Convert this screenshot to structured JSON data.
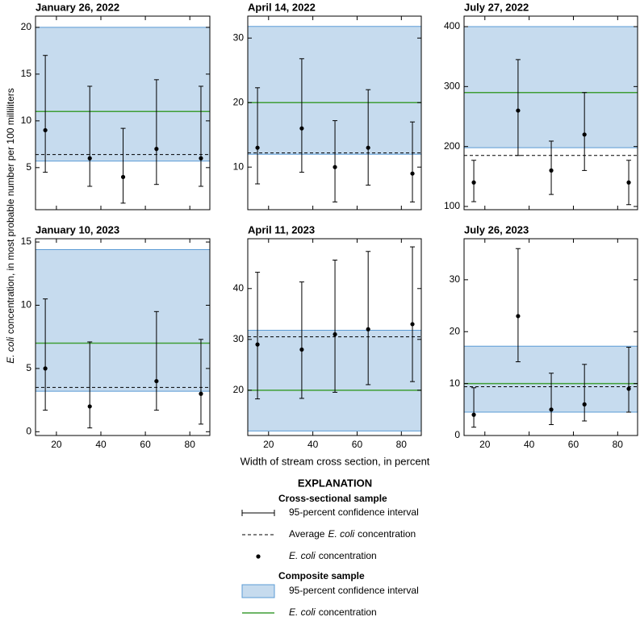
{
  "chart_data": [
    {
      "type": "errorbar",
      "title": "January 26, 2022",
      "x": [
        15,
        35,
        50,
        65,
        85
      ],
      "values": [
        9,
        6,
        4,
        7,
        6
      ],
      "ci_low": [
        4.5,
        3,
        1.2,
        3.2,
        3
      ],
      "ci_high": [
        17,
        13.7,
        9.2,
        14.4,
        13.7
      ],
      "mean": 6.4,
      "composite": 11,
      "composite_ci": [
        5.7,
        20
      ],
      "xlim": [
        10.6,
        89
      ],
      "xticks": [
        20,
        40,
        60,
        80
      ],
      "ylim": [
        0.5,
        21.2
      ],
      "yticks": [
        5,
        10,
        15,
        20
      ]
    },
    {
      "type": "errorbar",
      "title": "April 14, 2022",
      "x": [
        15,
        35,
        50,
        65,
        85
      ],
      "values": [
        13,
        16,
        10,
        13,
        9
      ],
      "ci_low": [
        7.4,
        9.2,
        4.6,
        7.2,
        4.6
      ],
      "ci_high": [
        22.3,
        26.8,
        17.2,
        22,
        17
      ],
      "mean": 12.2,
      "composite": 20,
      "composite_ci": [
        12,
        31.8
      ],
      "xlim": [
        10.6,
        89
      ],
      "xticks": [
        20,
        40,
        60,
        80
      ],
      "ylim": [
        3.4,
        33.4
      ],
      "yticks": [
        10,
        20,
        30
      ]
    },
    {
      "type": "errorbar",
      "title": "July 27, 2022",
      "x": [
        15,
        35,
        50,
        65,
        85
      ],
      "values": [
        140,
        260,
        160,
        220,
        140
      ],
      "ci_low": [
        108,
        185,
        120,
        160,
        103
      ],
      "ci_high": [
        177,
        345,
        209,
        290,
        177
      ],
      "mean": 185,
      "composite": 290,
      "composite_ci": [
        198,
        400
      ],
      "xlim": [
        10.6,
        89
      ],
      "xticks": [
        20,
        40,
        60,
        80
      ],
      "ylim": [
        94.6,
        417.5
      ],
      "yticks": [
        100,
        200,
        300,
        400
      ]
    },
    {
      "type": "errorbar",
      "title": "January 10, 2023",
      "x": [
        15,
        35,
        65,
        85
      ],
      "values": [
        5,
        2,
        4,
        3
      ],
      "ci_low": [
        1.7,
        0.3,
        1.7,
        0.6
      ],
      "ci_high": [
        10.5,
        7.1,
        9.5,
        7.3
      ],
      "mean": 3.5,
      "composite": 7,
      "composite_ci": [
        3.2,
        14.4
      ],
      "xlim": [
        10.6,
        89
      ],
      "xticks": [
        20,
        40,
        60,
        80
      ],
      "ylim": [
        -0.3,
        15.26
      ],
      "yticks": [
        0,
        5,
        10,
        15
      ]
    },
    {
      "type": "errorbar",
      "title": "April 11, 2023",
      "x": [
        15,
        35,
        50,
        65,
        85
      ],
      "values": [
        29,
        28,
        31,
        32,
        33
      ],
      "ci_low": [
        18.3,
        18.4,
        19.6,
        21.1,
        21.7
      ],
      "ci_high": [
        43.2,
        41.3,
        45.6,
        47.3,
        48.2
      ],
      "mean": 30.5,
      "composite": 20,
      "composite_ci": [
        12,
        31.8
      ],
      "xlim": [
        10.6,
        89
      ],
      "xticks": [
        20,
        40,
        60,
        80
      ],
      "ylim": [
        11.1,
        49.8
      ],
      "yticks": [
        20,
        30,
        40
      ]
    },
    {
      "type": "errorbar",
      "title": "July 26, 2023",
      "x": [
        15,
        35,
        50,
        65,
        85
      ],
      "values": [
        4,
        23,
        5,
        6,
        9
      ],
      "ci_low": [
        1.6,
        14.2,
        2.1,
        2.8,
        4.5
      ],
      "ci_high": [
        9.2,
        36,
        12,
        13.7,
        17
      ],
      "mean": 9.4,
      "composite": 10,
      "composite_ci": [
        4.5,
        17.2
      ],
      "xlim": [
        10.6,
        89
      ],
      "xticks": [
        20,
        40,
        60,
        80
      ],
      "ylim": [
        0,
        37.9
      ],
      "yticks": [
        0,
        10,
        20,
        30
      ]
    }
  ],
  "y_label": [
    "E. coli",
    "concentration, in most probable number per 100 milliliters"
  ],
  "x_label": "Width of stream cross section, in percent",
  "style": {
    "band_color": "#c6dbee",
    "band_edge": "#5b9bd5",
    "composite_color": "#3f9e35",
    "mark_color": "#000000"
  },
  "explanation": {
    "title": "EXPLANATION",
    "cross_sectional": {
      "title": "Cross-sectional sample",
      "ci": "95-percent confidence interval",
      "mean": [
        "Average",
        "E. coli",
        "concentration"
      ],
      "point": [
        "E. coli",
        "concentration"
      ]
    },
    "composite": {
      "title": "Composite sample",
      "ci": "95-percent confidence interval",
      "value": [
        "E. coli",
        "concentration"
      ]
    }
  }
}
